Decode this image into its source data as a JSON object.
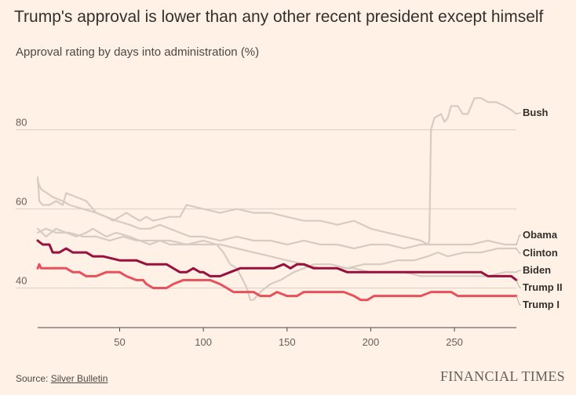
{
  "chart_data": {
    "type": "line",
    "title": "Trump's approval is lower than any other recent president except himself",
    "subtitle": "Approval rating by days into administration (%)",
    "xlabel": "",
    "ylabel": "",
    "xlim": [
      1,
      287
    ],
    "ylim": [
      30,
      93
    ],
    "xticks": [
      "50",
      "100",
      "150",
      "200",
      "250"
    ],
    "yticks": [
      "40",
      "60",
      "80"
    ],
    "grid": true,
    "series": [
      {
        "name": "Bush",
        "color": "#d6ccc2",
        "points": [
          [
            1,
            68
          ],
          [
            2,
            62
          ],
          [
            4,
            61
          ],
          [
            8,
            61
          ],
          [
            12,
            62
          ],
          [
            16,
            61
          ],
          [
            18,
            64
          ],
          [
            24,
            63
          ],
          [
            30,
            62
          ],
          [
            36,
            59
          ],
          [
            42,
            58
          ],
          [
            46,
            57
          ],
          [
            50,
            58
          ],
          [
            54,
            59
          ],
          [
            58,
            58
          ],
          [
            62,
            57
          ],
          [
            66,
            58
          ],
          [
            70,
            57
          ],
          [
            80,
            58
          ],
          [
            86,
            58
          ],
          [
            90,
            61
          ],
          [
            100,
            60
          ],
          [
            110,
            59
          ],
          [
            120,
            60
          ],
          [
            130,
            59
          ],
          [
            140,
            59
          ],
          [
            150,
            58
          ],
          [
            160,
            57
          ],
          [
            170,
            57
          ],
          [
            180,
            56
          ],
          [
            190,
            57
          ],
          [
            195,
            56
          ],
          [
            200,
            55
          ],
          [
            210,
            54
          ],
          [
            220,
            53
          ],
          [
            230,
            52
          ],
          [
            234,
            51
          ],
          [
            235,
            52
          ],
          [
            236,
            80
          ],
          [
            238,
            83
          ],
          [
            242,
            84
          ],
          [
            244,
            82
          ],
          [
            246,
            83
          ],
          [
            248,
            86
          ],
          [
            252,
            86
          ],
          [
            255,
            84
          ],
          [
            258,
            84
          ],
          [
            262,
            88
          ],
          [
            266,
            88
          ],
          [
            270,
            87
          ],
          [
            275,
            87
          ],
          [
            280,
            86
          ],
          [
            284,
            85
          ],
          [
            287,
            84
          ]
        ]
      },
      {
        "name": "Obama",
        "color": "#d6ccc2",
        "points": [
          [
            1,
            67
          ],
          [
            3,
            65
          ],
          [
            10,
            63
          ],
          [
            16,
            62
          ],
          [
            20,
            61
          ],
          [
            28,
            60
          ],
          [
            36,
            59
          ],
          [
            42,
            58
          ],
          [
            48,
            57
          ],
          [
            56,
            56
          ],
          [
            62,
            55
          ],
          [
            68,
            55
          ],
          [
            74,
            56
          ],
          [
            80,
            55
          ],
          [
            86,
            54
          ],
          [
            92,
            53
          ],
          [
            100,
            53
          ],
          [
            110,
            52
          ],
          [
            120,
            53
          ],
          [
            130,
            52
          ],
          [
            140,
            52
          ],
          [
            150,
            51
          ],
          [
            160,
            52
          ],
          [
            170,
            51
          ],
          [
            180,
            51
          ],
          [
            190,
            50
          ],
          [
            200,
            51
          ],
          [
            210,
            51
          ],
          [
            220,
            50
          ],
          [
            230,
            51
          ],
          [
            240,
            51
          ],
          [
            250,
            51
          ],
          [
            260,
            51
          ],
          [
            270,
            52
          ],
          [
            280,
            51
          ],
          [
            287,
            51
          ]
        ]
      },
      {
        "name": "Clinton",
        "color": "#d6ccc2",
        "points": [
          [
            1,
            55
          ],
          [
            6,
            53
          ],
          [
            12,
            55
          ],
          [
            18,
            54
          ],
          [
            24,
            53
          ],
          [
            30,
            54
          ],
          [
            34,
            55
          ],
          [
            38,
            54
          ],
          [
            42,
            53
          ],
          [
            48,
            54
          ],
          [
            56,
            53
          ],
          [
            62,
            52
          ],
          [
            68,
            51
          ],
          [
            74,
            52
          ],
          [
            80,
            51
          ],
          [
            90,
            51
          ],
          [
            100,
            52
          ],
          [
            108,
            51
          ],
          [
            112,
            49
          ],
          [
            116,
            46
          ],
          [
            120,
            45
          ],
          [
            126,
            40
          ],
          [
            128,
            37
          ],
          [
            130,
            37
          ],
          [
            134,
            39
          ],
          [
            140,
            41
          ],
          [
            146,
            42
          ],
          [
            150,
            43
          ],
          [
            154,
            44
          ],
          [
            160,
            45
          ],
          [
            166,
            46
          ],
          [
            176,
            46
          ],
          [
            186,
            45
          ],
          [
            196,
            46
          ],
          [
            206,
            46
          ],
          [
            216,
            47
          ],
          [
            226,
            47
          ],
          [
            234,
            48
          ],
          [
            240,
            49
          ],
          [
            246,
            48
          ],
          [
            256,
            49
          ],
          [
            266,
            49
          ],
          [
            276,
            50
          ],
          [
            287,
            50
          ]
        ]
      },
      {
        "name": "Biden",
        "color": "#d6ccc2",
        "points": [
          [
            1,
            54
          ],
          [
            6,
            55
          ],
          [
            12,
            54
          ],
          [
            20,
            54
          ],
          [
            28,
            53
          ],
          [
            36,
            53
          ],
          [
            44,
            52
          ],
          [
            52,
            53
          ],
          [
            60,
            52
          ],
          [
            70,
            52
          ],
          [
            80,
            52
          ],
          [
            90,
            51
          ],
          [
            100,
            51
          ],
          [
            110,
            51
          ],
          [
            120,
            50
          ],
          [
            130,
            49
          ],
          [
            140,
            48
          ],
          [
            150,
            47
          ],
          [
            160,
            46
          ],
          [
            170,
            45
          ],
          [
            180,
            45
          ],
          [
            190,
            45
          ],
          [
            200,
            44
          ],
          [
            210,
            44
          ],
          [
            220,
            44
          ],
          [
            230,
            43
          ],
          [
            240,
            43
          ],
          [
            250,
            43
          ],
          [
            260,
            43
          ],
          [
            270,
            43
          ],
          [
            280,
            44
          ],
          [
            287,
            44
          ]
        ]
      },
      {
        "name": "Trump II",
        "color": "#990F3D",
        "points": [
          [
            1,
            52
          ],
          [
            4,
            51
          ],
          [
            8,
            51
          ],
          [
            10,
            49
          ],
          [
            14,
            49
          ],
          [
            18,
            50
          ],
          [
            22,
            49
          ],
          [
            26,
            49
          ],
          [
            30,
            49
          ],
          [
            34,
            48
          ],
          [
            40,
            48
          ],
          [
            50,
            47
          ],
          [
            56,
            47
          ],
          [
            60,
            47
          ],
          [
            66,
            46
          ],
          [
            74,
            46
          ],
          [
            78,
            46
          ],
          [
            82,
            45
          ],
          [
            86,
            44
          ],
          [
            90,
            44
          ],
          [
            94,
            45
          ],
          [
            98,
            44
          ],
          [
            100,
            44
          ],
          [
            104,
            43
          ],
          [
            110,
            43
          ],
          [
            116,
            44
          ],
          [
            122,
            45
          ],
          [
            128,
            45
          ],
          [
            136,
            45
          ],
          [
            142,
            45
          ],
          [
            148,
            46
          ],
          [
            152,
            45
          ],
          [
            156,
            46
          ],
          [
            160,
            46
          ],
          [
            166,
            45
          ],
          [
            172,
            45
          ],
          [
            180,
            45
          ],
          [
            186,
            44
          ],
          [
            192,
            44
          ],
          [
            198,
            44
          ],
          [
            202,
            44
          ],
          [
            210,
            44
          ],
          [
            218,
            44
          ],
          [
            226,
            44
          ],
          [
            234,
            44
          ],
          [
            240,
            44
          ],
          [
            248,
            44
          ],
          [
            256,
            44
          ],
          [
            262,
            44
          ],
          [
            266,
            44
          ],
          [
            270,
            43
          ],
          [
            276,
            43
          ],
          [
            280,
            43
          ],
          [
            284,
            43
          ],
          [
            287,
            42
          ]
        ]
      },
      {
        "name": "Trump I",
        "color": "#E8505B",
        "points": [
          [
            1,
            45
          ],
          [
            2,
            46
          ],
          [
            3,
            45
          ],
          [
            6,
            45
          ],
          [
            10,
            45
          ],
          [
            14,
            45
          ],
          [
            18,
            45
          ],
          [
            22,
            44
          ],
          [
            26,
            44
          ],
          [
            30,
            43
          ],
          [
            36,
            43
          ],
          [
            42,
            44
          ],
          [
            46,
            44
          ],
          [
            50,
            44
          ],
          [
            54,
            43
          ],
          [
            60,
            42
          ],
          [
            64,
            42
          ],
          [
            66,
            41
          ],
          [
            70,
            40
          ],
          [
            74,
            40
          ],
          [
            78,
            40
          ],
          [
            82,
            41
          ],
          [
            88,
            42
          ],
          [
            94,
            42
          ],
          [
            100,
            42
          ],
          [
            104,
            42
          ],
          [
            110,
            41
          ],
          [
            114,
            40
          ],
          [
            118,
            39
          ],
          [
            122,
            39
          ],
          [
            126,
            39
          ],
          [
            130,
            39
          ],
          [
            134,
            38
          ],
          [
            140,
            38
          ],
          [
            144,
            39
          ],
          [
            150,
            38
          ],
          [
            156,
            38
          ],
          [
            160,
            39
          ],
          [
            166,
            39
          ],
          [
            172,
            39
          ],
          [
            178,
            39
          ],
          [
            184,
            39
          ],
          [
            190,
            38
          ],
          [
            194,
            37
          ],
          [
            198,
            37
          ],
          [
            202,
            38
          ],
          [
            206,
            38
          ],
          [
            212,
            38
          ],
          [
            218,
            38
          ],
          [
            224,
            38
          ],
          [
            230,
            38
          ],
          [
            236,
            39
          ],
          [
            242,
            39
          ],
          [
            248,
            39
          ],
          [
            252,
            38
          ],
          [
            256,
            38
          ],
          [
            262,
            38
          ],
          [
            268,
            38
          ],
          [
            274,
            38
          ],
          [
            280,
            38
          ],
          [
            284,
            38
          ],
          [
            287,
            38
          ]
        ]
      }
    ],
    "labels": [
      {
        "name": "Bush",
        "value": "Bush"
      },
      {
        "name": "Obama",
        "value": "Obama"
      },
      {
        "name": "Clinton",
        "value": "Clinton"
      },
      {
        "name": "Biden",
        "value": "Biden"
      },
      {
        "name": "Trump II",
        "value": "Trump II"
      },
      {
        "name": "Trump I",
        "value": "Trump I"
      }
    ]
  },
  "footer": {
    "source_prefix": "Source: ",
    "source_link": "Silver Bulletin",
    "brand": "FINANCIAL TIMES"
  }
}
